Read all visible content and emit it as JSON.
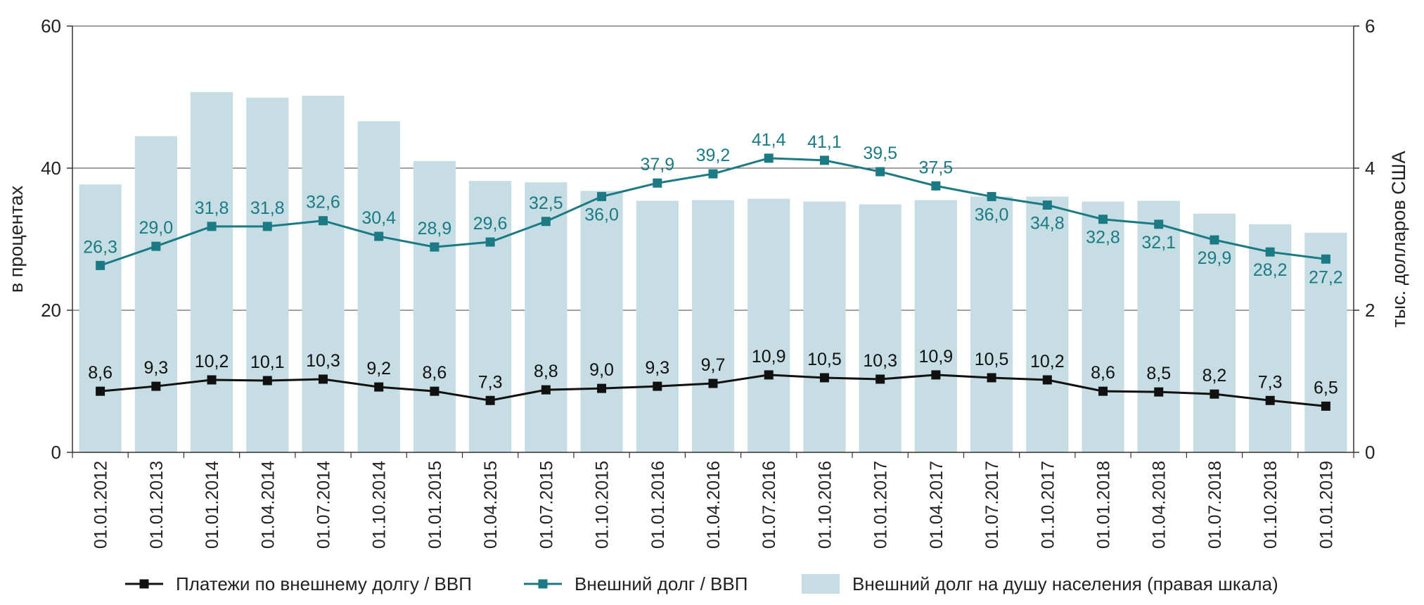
{
  "chart_data": {
    "type": "bar+line",
    "title": "",
    "categories": [
      "01.01.2012",
      "01.01.2013",
      "01.01.2014",
      "01.04.2014",
      "01.07.2014",
      "01.10.2014",
      "01.01.2015",
      "01.04.2015",
      "01.07.2015",
      "01.10.2015",
      "01.01.2016",
      "01.04.2016",
      "01.07.2016",
      "01.10.2016",
      "01.01.2017",
      "01.04.2017",
      "01.07.2017",
      "01.10.2017",
      "01.01.2018",
      "01.04.2018",
      "01.07.2018",
      "01.10.2018",
      "01.01.2019"
    ],
    "y_left": {
      "label": "в процентах",
      "min": 0,
      "max": 60,
      "ticks": [
        "0",
        "20",
        "40",
        "60"
      ]
    },
    "y_right": {
      "label": "тыс. долларов США",
      "min": 0,
      "max": 6,
      "ticks": [
        "0",
        "2",
        "4",
        "6"
      ]
    },
    "series": [
      {
        "name": "Внешний долг на душу населения (правая шкала)",
        "type": "bar",
        "axis": "right",
        "color": "#c5dde3",
        "values": [
          3.77,
          4.45,
          5.07,
          4.99,
          5.02,
          4.66,
          4.1,
          3.82,
          3.8,
          3.68,
          3.54,
          3.55,
          3.57,
          3.53,
          3.49,
          3.55,
          3.6,
          3.6,
          3.53,
          3.54,
          3.36,
          3.21,
          3.09
        ]
      },
      {
        "name": "Внешний долг / ВВП",
        "type": "line",
        "axis": "left",
        "color": "#1c7a85",
        "values": [
          26.3,
          29.0,
          31.8,
          31.8,
          32.6,
          30.4,
          28.9,
          29.6,
          32.5,
          36.0,
          37.9,
          39.2,
          41.4,
          41.1,
          39.5,
          37.5,
          36.0,
          34.8,
          32.8,
          32.1,
          29.9,
          28.2,
          27.2
        ],
        "labels": [
          "26,3",
          "29,0",
          "31,8",
          "31,8",
          "32,6",
          "30,4",
          "28,9",
          "29,6",
          "32,5",
          "36,0",
          "37,9",
          "39,2",
          "41,4",
          "41,1",
          "39,5",
          "37,5",
          "36,0",
          "34,8",
          "32,8",
          "32,1",
          "29,9",
          "28,2",
          "27,2"
        ],
        "label_pos": [
          "above",
          "above",
          "above",
          "above",
          "above",
          "above",
          "above",
          "above",
          "above",
          "below",
          "above",
          "above",
          "above",
          "above",
          "above",
          "above",
          "below",
          "below",
          "below",
          "below",
          "below",
          "below",
          "below"
        ]
      },
      {
        "name": "Платежи по внешнему долгу / ВВП",
        "type": "line",
        "axis": "left",
        "color": "#111111",
        "values": [
          8.6,
          9.3,
          10.2,
          10.1,
          10.3,
          9.2,
          8.6,
          7.3,
          8.8,
          9.0,
          9.3,
          9.7,
          10.9,
          10.5,
          10.3,
          10.9,
          10.5,
          10.2,
          8.6,
          8.5,
          8.2,
          7.3,
          6.5
        ],
        "labels": [
          "8,6",
          "9,3",
          "10,2",
          "10,1",
          "10,3",
          "9,2",
          "8,6",
          "7,3",
          "8,8",
          "9,0",
          "9,3",
          "9,7",
          "10,9",
          "10,5",
          "10,3",
          "10,9",
          "10,5",
          "10,2",
          "8,6",
          "8,5",
          "8,2",
          "7,3",
          "6,5"
        ],
        "label_pos": [
          "above",
          "above",
          "above",
          "above",
          "above",
          "above",
          "above",
          "above",
          "above",
          "above",
          "above",
          "above",
          "above",
          "above",
          "above",
          "above",
          "above",
          "above",
          "above",
          "above",
          "above",
          "above",
          "above"
        ]
      }
    ],
    "legend": {
      "placement": "bottom",
      "items": [
        {
          "label": "Платежи по внешнему долгу / ВВП",
          "kind": "line",
          "color": "#111111"
        },
        {
          "label": "Внешний долг / ВВП",
          "kind": "line",
          "color": "#1c7a85"
        },
        {
          "label": "Внешний долг на душу населения (правая шкала)",
          "kind": "bar",
          "color": "#c5dde3"
        }
      ]
    },
    "grid": true
  }
}
